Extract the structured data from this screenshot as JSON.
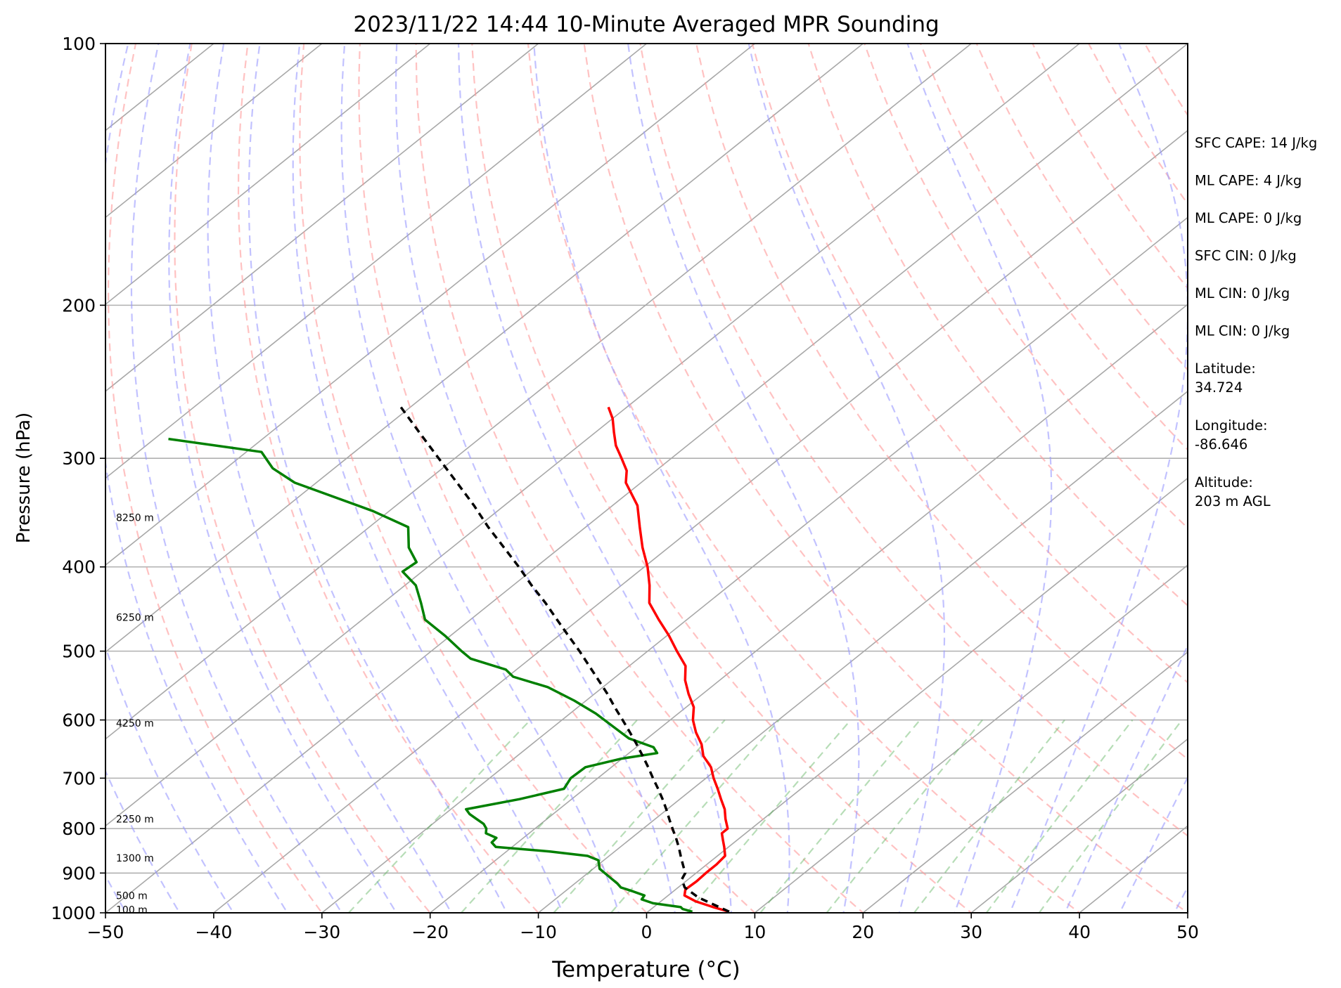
{
  "chart_data": {
    "type": "line",
    "title": "2023/11/22 14:44 10-Minute Averaged MPR Sounding",
    "xlabel": "Temperature (°C)",
    "ylabel": "Pressure (hPa)",
    "xlim": [
      -50,
      50
    ],
    "ylim": [
      1000,
      100
    ],
    "y_scale": "log",
    "grid": true,
    "x_ticks": [
      "−50",
      "−40",
      "−30",
      "−20",
      "−10",
      "0",
      "10",
      "20",
      "30",
      "40",
      "50"
    ],
    "y_ticks": [
      "100",
      "200",
      "300",
      "400",
      "500",
      "600",
      "700",
      "800",
      "900",
      "1000"
    ],
    "height_labels": [
      {
        "p": 992,
        "text": "100 m"
      },
      {
        "p": 955,
        "text": "500 m"
      },
      {
        "p": 865,
        "text": "1300 m"
      },
      {
        "p": 780,
        "text": "2250 m"
      },
      {
        "p": 605,
        "text": "4250 m"
      },
      {
        "p": 457,
        "text": "6250 m"
      },
      {
        "p": 351,
        "text": "8250 m"
      }
    ],
    "annotations": [
      "SFC CAPE: 14 J/kg",
      "ML CAPE: 4 J/kg",
      "ML CAPE: 0 J/kg",
      "SFC CIN: 0 J/kg",
      "ML CIN: 0 J/kg",
      "ML CIN: 0 J/kg",
      "Latitude:\n34.724",
      "Longitude:\n-86.646",
      "Altitude:\n203 m AGL"
    ],
    "series": [
      {
        "color": "#ff0000",
        "pressure": [
          997,
          985,
          970,
          955,
          940,
          920,
          900,
          880,
          860,
          840,
          825,
          810,
          800,
          780,
          760,
          740,
          720,
          700,
          680,
          660,
          640,
          620,
          600,
          580,
          560,
          540,
          520,
          500,
          480,
          460,
          440,
          420,
          400,
          380,
          360,
          340,
          320,
          310,
          300,
          290,
          280,
          270,
          262
        ],
        "temperature": [
          7.5,
          5.5,
          3.2,
          1.5,
          0.9,
          1.0,
          0.9,
          0.9,
          0.7,
          -0.4,
          -1.3,
          -2.2,
          -2.2,
          -3.5,
          -4.7,
          -6.2,
          -7.7,
          -9.3,
          -10.8,
          -12.8,
          -14.3,
          -16.2,
          -17.9,
          -19.3,
          -21.3,
          -23.2,
          -24.8,
          -27.3,
          -29.8,
          -32.6,
          -35.4,
          -37.4,
          -39.7,
          -42.4,
          -45.0,
          -47.7,
          -51.4,
          -52.7,
          -54.6,
          -56.6,
          -58.3,
          -60.0,
          -61.7
        ]
      },
      {
        "color": "#008000",
        "pressure": [
          997,
          990,
          985,
          975,
          965,
          955,
          945,
          935,
          925,
          910,
          890,
          870,
          860,
          850,
          840,
          830,
          820,
          810,
          800,
          790,
          780,
          770,
          760,
          740,
          720,
          700,
          680,
          665,
          655,
          645,
          630,
          610,
          590,
          570,
          550,
          535,
          525,
          510,
          500,
          480,
          460,
          440,
          420,
          405,
          395,
          380,
          360,
          345,
          320,
          308,
          295,
          285
        ],
        "dewpoint": [
          4.1,
          2.9,
          2.5,
          -0.5,
          -2.0,
          -2.2,
          -3.7,
          -5.3,
          -6.1,
          -7.5,
          -9.4,
          -10.5,
          -12.0,
          -16.0,
          -21.5,
          -22.4,
          -22.5,
          -24.0,
          -24.5,
          -25.3,
          -26.5,
          -27.7,
          -28.6,
          -24.8,
          -21.9,
          -22.5,
          -22.4,
          -20.1,
          -17.4,
          -18.4,
          -21.7,
          -24.6,
          -27.6,
          -31.1,
          -35.1,
          -39.5,
          -41.0,
          -45.5,
          -47.2,
          -50.5,
          -54.2,
          -56.5,
          -59.0,
          -61.8,
          -61.6,
          -64.0,
          -66.4,
          -71.5,
          -82.0,
          -85.7,
          -88.6,
          -98.7
        ]
      },
      {
        "color": "#000000",
        "dashed": true,
        "pressure": [
          997,
          960,
          935,
          915,
          900,
          880,
          860,
          840,
          820,
          800,
          780,
          760,
          740,
          720,
          700,
          680,
          660,
          640,
          620,
          600,
          580,
          560,
          540,
          520,
          500,
          480,
          460,
          440,
          420,
          400,
          380,
          360,
          340,
          320,
          300,
          280,
          260
        ],
        "temperature": [
          7.5,
          3.0,
          0.6,
          -0.6,
          -1.0,
          -2.2,
          -3.4,
          -4.6,
          -5.9,
          -7.3,
          -8.7,
          -10.1,
          -11.6,
          -13.2,
          -14.9,
          -16.6,
          -18.4,
          -20.3,
          -22.3,
          -24.4,
          -26.6,
          -28.8,
          -31.2,
          -33.7,
          -36.3,
          -39.1,
          -42.0,
          -45.0,
          -48.3,
          -51.6,
          -55.2,
          -59.0,
          -62.8,
          -67.0,
          -71.5,
          -76.3,
          -81.4
        ]
      }
    ]
  }
}
